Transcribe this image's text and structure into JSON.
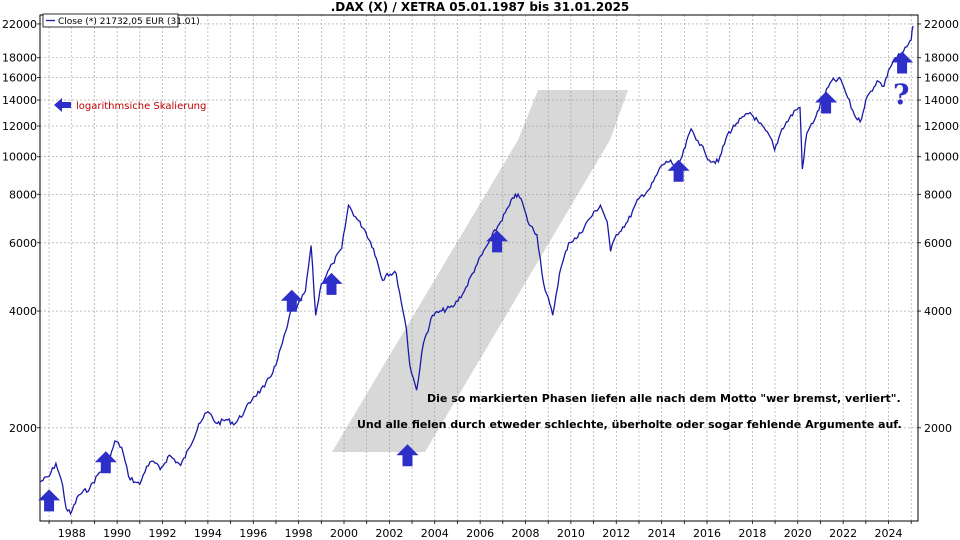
{
  "chart_data": {
    "type": "line",
    "title": ".DAX (X) / XETRA 05.01.1987 bis 31.01.2025",
    "legend": "Close (*) 21732,05 EUR (31.01)",
    "legend_position": "top-left",
    "y_scale": "log",
    "grid": true,
    "xlim": [
      1986.6,
      2025.3
    ],
    "ylim": [
      1150,
      23200
    ],
    "x_ticks": [
      1988,
      1990,
      1992,
      1994,
      1996,
      1998,
      2000,
      2002,
      2004,
      2006,
      2008,
      2010,
      2012,
      2014,
      2016,
      2018,
      2020,
      2022,
      2024
    ],
    "x_tick_labels": [
      "1988",
      "1990",
      "1992",
      "1994",
      "1996",
      "1998",
      "2000",
      "2002",
      "2004",
      "2006",
      "2008",
      "2010",
      "2012",
      "2014",
      "2016",
      "2018",
      "2020",
      "2022",
      "2024"
    ],
    "y_ticks": [
      2000,
      4000,
      6000,
      8000,
      10000,
      12000,
      14000,
      16000,
      18000,
      22000
    ],
    "y_tick_labels": [
      "2000",
      "4000",
      "6000",
      "8000",
      "10000",
      "12000",
      "14000",
      "16000",
      "18000",
      "22000"
    ],
    "series": [
      {
        "color": "#1a1aa8",
        "x": [
          1986.6,
          1987.0,
          1987.3,
          1987.6,
          1987.75,
          1987.95,
          1988.3,
          1988.8,
          1989.2,
          1989.6,
          1989.9,
          1990.2,
          1990.5,
          1990.8,
          1991.0,
          1991.3,
          1991.6,
          1991.9,
          1992.3,
          1992.8,
          1993.2,
          1993.6,
          1994.0,
          1994.4,
          1994.8,
          1995.2,
          1995.6,
          1996.0,
          1996.5,
          1997.0,
          1997.5,
          1997.7,
          1997.9,
          1998.3,
          1998.55,
          1998.75,
          1999.0,
          1999.5,
          1999.9,
          2000.2,
          2000.5,
          2000.9,
          2001.3,
          2001.7,
          2001.9,
          2002.3,
          2002.6,
          2002.75,
          2002.9,
          2003.2,
          2003.5,
          2003.9,
          2004.3,
          2004.8,
          2005.3,
          2005.8,
          2006.3,
          2006.5,
          2006.9,
          2007.3,
          2007.55,
          2007.8,
          2008.1,
          2008.5,
          2008.8,
          2009.2,
          2009.5,
          2009.9,
          2010.3,
          2010.8,
          2011.3,
          2011.6,
          2011.75,
          2012.0,
          2012.5,
          2013.0,
          2013.5,
          2014.0,
          2014.4,
          2014.6,
          2014.9,
          2015.3,
          2015.6,
          2015.9,
          2016.1,
          2016.5,
          2016.9,
          2017.3,
          2017.9,
          2018.3,
          2018.8,
          2018.98,
          2019.3,
          2019.9,
          2020.1,
          2020.2,
          2020.4,
          2020.8,
          2021.2,
          2021.5,
          2021.9,
          2022.2,
          2022.5,
          2022.75,
          2023.0,
          2023.5,
          2023.8,
          2024.0,
          2024.3,
          2024.6,
          2024.8,
          2025.0,
          2025.08
        ],
        "y": [
          1450,
          1500,
          1620,
          1420,
          1240,
          1200,
          1340,
          1400,
          1530,
          1600,
          1850,
          1780,
          1500,
          1450,
          1430,
          1590,
          1640,
          1560,
          1700,
          1600,
          1780,
          2050,
          2200,
          2050,
          2100,
          2050,
          2200,
          2400,
          2550,
          2900,
          3650,
          4100,
          4050,
          4500,
          5900,
          3900,
          4700,
          5300,
          5800,
          7500,
          7000,
          6500,
          5800,
          4800,
          5000,
          5000,
          4000,
          3600,
          2900,
          2500,
          3300,
          3900,
          4000,
          4100,
          4500,
          5200,
          5900,
          6200,
          6800,
          7500,
          8000,
          7800,
          6800,
          6300,
          4700,
          3900,
          5000,
          6000,
          6200,
          6900,
          7500,
          6800,
          5700,
          6300,
          6800,
          7800,
          8300,
          9500,
          9800,
          9200,
          10000,
          11800,
          11000,
          10300,
          9800,
          9700,
          11400,
          12200,
          13000,
          12200,
          11200,
          10400,
          11800,
          13200,
          13400,
          9300,
          11500,
          12700,
          14500,
          15700,
          15800,
          14200,
          12800,
          12300,
          14000,
          15700,
          15200,
          16700,
          18000,
          18400,
          19200,
          20000,
          21730
        ]
      }
    ],
    "annotations": [
      {
        "text": "logarithmsiche Skalierung"
      },
      {
        "text": "Die so markierten Phasen liefen alle nach dem Motto \"wer bremst, verliert\"."
      },
      {
        "text": "Und alle fielen durch etweder schlechte, überholte oder sogar fehlende Argumente auf."
      },
      {
        "text": "?"
      }
    ],
    "markers": [
      {
        "x": 1987.0,
        "y": 1300
      },
      {
        "x": 1989.5,
        "y": 1630
      },
      {
        "x": 1997.7,
        "y": 4250
      },
      {
        "x": 1999.45,
        "y": 4700
      },
      {
        "x": 2002.8,
        "y": 1700
      },
      {
        "x": 2006.75,
        "y": 6050
      },
      {
        "x": 2014.75,
        "y": 9200
      },
      {
        "x": 2021.25,
        "y": 13800
      },
      {
        "x": 2024.6,
        "y": 17500
      }
    ],
    "colors": {
      "line": "#1a1aa8",
      "arrow": "#2e2ec8",
      "annotation_red": "#c00000",
      "grid": "#9a9a9a",
      "watermark": "#d8d8d8"
    }
  }
}
